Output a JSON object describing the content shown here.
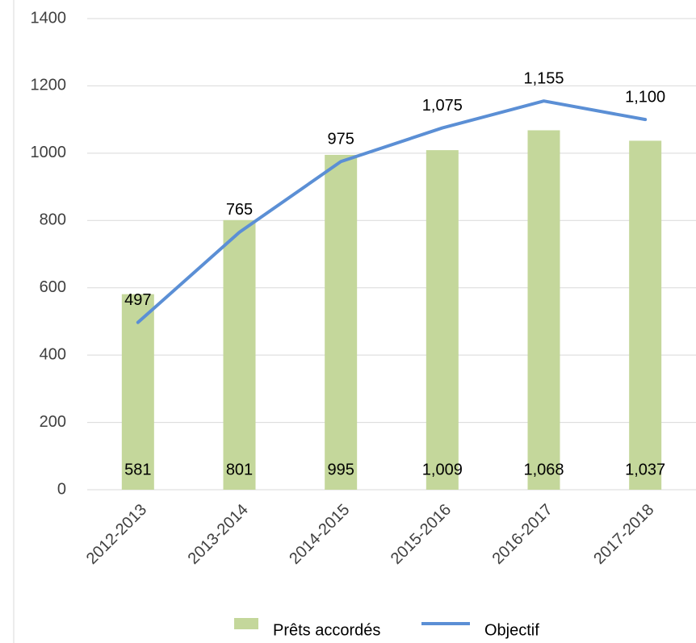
{
  "chart_data": {
    "type": "bar",
    "categories": [
      "2012-2013",
      "2013-2014",
      "2014-2015",
      "2015-2016",
      "2016-2017",
      "2017-2018"
    ],
    "series": [
      {
        "name": "Prêts accordés",
        "type": "bar",
        "color": "#c4d79b",
        "values": [
          581,
          801,
          995,
          1009,
          1068,
          1037
        ],
        "value_labels": [
          "581",
          "801",
          "995",
          "1,009",
          "1,068",
          "1,037"
        ]
      },
      {
        "name": "Objectif",
        "type": "line",
        "color": "#5b8fd5",
        "values": [
          497,
          765,
          975,
          1075,
          1155,
          1100
        ],
        "value_labels": [
          "497",
          "765",
          "975",
          "1,075",
          "1,155",
          "1,100"
        ]
      }
    ],
    "ylim": [
      0,
      1400
    ],
    "yticks": [
      0,
      200,
      400,
      600,
      800,
      1000,
      1200,
      1400
    ],
    "grid": true,
    "legend": "bottom"
  }
}
